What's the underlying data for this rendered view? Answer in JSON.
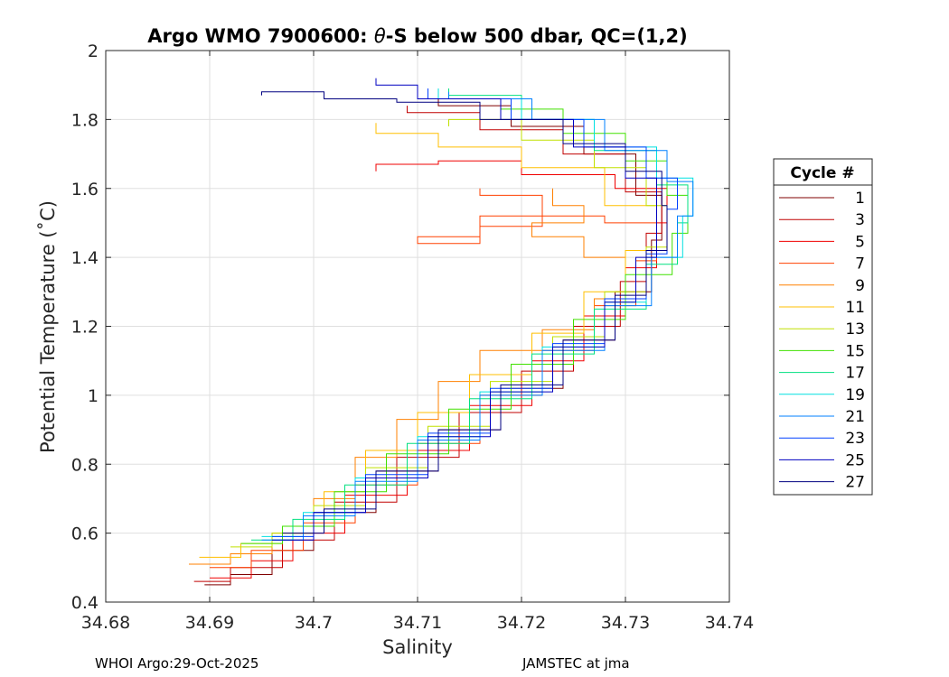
{
  "chart_data": {
    "type": "line",
    "title_prefix": "Argo WMO 7900600: ",
    "title_theta": "θ",
    "title_suffix": "-S below 500 dbar,  QC=(1,2)",
    "xlabel": "Salinity",
    "ylabel": "Potential Temperature (˚C)",
    "xlim": [
      34.68,
      34.74
    ],
    "ylim": [
      0.4,
      2.0
    ],
    "xticks": [
      34.68,
      34.69,
      34.7,
      34.71,
      34.72,
      34.73,
      34.74
    ],
    "xtick_labels": [
      "34.68",
      "34.69",
      "34.7",
      "34.71",
      "34.72",
      "34.73",
      "34.74"
    ],
    "yticks": [
      0.4,
      0.6,
      0.8,
      1.0,
      1.2,
      1.4,
      1.6,
      1.8,
      2.0
    ],
    "ytick_labels": [
      "0.4",
      "0.6",
      "0.8",
      "1",
      "1.2",
      "1.4",
      "1.6",
      "1.8",
      "2"
    ],
    "grid": true,
    "legend": {
      "title": "Cycle #",
      "placement": "right-outside",
      "entries": [
        "1",
        "3",
        "5",
        "7",
        "9",
        "11",
        "13",
        "15",
        "17",
        "19",
        "21",
        "23",
        "25",
        "27"
      ]
    },
    "series": [
      {
        "name": "1",
        "color": "#800000",
        "points": [
          [
            34.6895,
            0.45
          ],
          [
            34.692,
            0.48
          ],
          [
            34.696,
            0.55
          ],
          [
            34.7,
            0.66
          ],
          [
            34.706,
            0.78
          ],
          [
            34.712,
            0.9
          ],
          [
            34.718,
            1.02
          ],
          [
            34.724,
            1.16
          ],
          [
            34.729,
            1.3
          ],
          [
            34.7325,
            1.45
          ],
          [
            34.7335,
            1.58
          ],
          [
            34.731,
            1.7
          ],
          [
            34.726,
            1.78
          ],
          [
            34.719,
            1.84
          ],
          [
            34.712,
            1.87
          ]
        ]
      },
      {
        "name": "3",
        "color": "#c00000",
        "points": [
          [
            34.6885,
            0.46
          ],
          [
            34.692,
            0.5
          ],
          [
            34.697,
            0.58
          ],
          [
            34.702,
            0.69
          ],
          [
            34.708,
            0.82
          ],
          [
            34.714,
            0.95
          ],
          [
            34.72,
            1.07
          ],
          [
            34.725,
            1.2
          ],
          [
            34.7295,
            1.33
          ],
          [
            34.732,
            1.47
          ],
          [
            34.7335,
            1.59
          ],
          [
            34.73,
            1.7
          ],
          [
            34.724,
            1.77
          ],
          [
            34.716,
            1.82
          ],
          [
            34.709,
            1.84
          ]
        ]
      },
      {
        "name": "5",
        "color": "#f00000",
        "points": [
          [
            34.69,
            0.47
          ],
          [
            34.694,
            0.52
          ],
          [
            34.698,
            0.6
          ],
          [
            34.703,
            0.71
          ],
          [
            34.709,
            0.84
          ],
          [
            34.715,
            0.97
          ],
          [
            34.721,
            1.1
          ],
          [
            34.726,
            1.23
          ],
          [
            34.73,
            1.37
          ],
          [
            34.733,
            1.5
          ],
          [
            34.734,
            1.6
          ],
          [
            34.729,
            1.64
          ],
          [
            34.72,
            1.68
          ],
          [
            34.712,
            1.67
          ],
          [
            34.706,
            1.65
          ]
        ]
      },
      {
        "name": "7",
        "color": "#ff4000",
        "points": [
          [
            34.69,
            0.5
          ],
          [
            34.694,
            0.55
          ],
          [
            34.699,
            0.63
          ],
          [
            34.704,
            0.74
          ],
          [
            34.71,
            0.86
          ],
          [
            34.716,
            1.0
          ],
          [
            34.722,
            1.13
          ],
          [
            34.727,
            1.26
          ],
          [
            34.731,
            1.39
          ],
          [
            34.733,
            1.5
          ],
          [
            34.728,
            1.52
          ],
          [
            34.722,
            1.49
          ],
          [
            34.716,
            1.46
          ],
          [
            34.71,
            1.44
          ],
          [
            34.716,
            1.52
          ],
          [
            34.722,
            1.58
          ],
          [
            34.716,
            1.6
          ]
        ]
      },
      {
        "name": "9",
        "color": "#ff8000",
        "points": [
          [
            34.688,
            0.51
          ],
          [
            34.692,
            0.54
          ],
          [
            34.696,
            0.6
          ],
          [
            34.7,
            0.7
          ],
          [
            34.704,
            0.82
          ],
          [
            34.708,
            0.93
          ],
          [
            34.712,
            1.04
          ],
          [
            34.716,
            1.13
          ],
          [
            34.722,
            1.19
          ],
          [
            34.727,
            1.28
          ],
          [
            34.73,
            1.4
          ],
          [
            34.726,
            1.46
          ],
          [
            34.721,
            1.5
          ],
          [
            34.726,
            1.55
          ],
          [
            34.723,
            1.6
          ]
        ]
      },
      {
        "name": "11",
        "color": "#ffbf00",
        "points": [
          [
            34.689,
            0.53
          ],
          [
            34.693,
            0.57
          ],
          [
            34.697,
            0.62
          ],
          [
            34.701,
            0.72
          ],
          [
            34.705,
            0.84
          ],
          [
            34.71,
            0.95
          ],
          [
            34.715,
            1.06
          ],
          [
            34.721,
            1.18
          ],
          [
            34.726,
            1.3
          ],
          [
            34.73,
            1.42
          ],
          [
            34.733,
            1.55
          ],
          [
            34.728,
            1.66
          ],
          [
            34.72,
            1.72
          ],
          [
            34.712,
            1.76
          ],
          [
            34.706,
            1.79
          ]
        ]
      },
      {
        "name": "13",
        "color": "#c0e000",
        "points": [
          [
            34.692,
            0.56
          ],
          [
            34.696,
            0.6
          ],
          [
            34.7,
            0.68
          ],
          [
            34.705,
            0.79
          ],
          [
            34.711,
            0.91
          ],
          [
            34.717,
            1.04
          ],
          [
            34.723,
            1.17
          ],
          [
            34.728,
            1.3
          ],
          [
            34.732,
            1.43
          ],
          [
            34.734,
            1.55
          ],
          [
            34.732,
            1.66
          ],
          [
            34.727,
            1.74
          ],
          [
            34.72,
            1.8
          ],
          [
            34.713,
            1.78
          ]
        ]
      },
      {
        "name": "15",
        "color": "#40e000",
        "points": [
          [
            34.693,
            0.57
          ],
          [
            34.697,
            0.62
          ],
          [
            34.702,
            0.72
          ],
          [
            34.707,
            0.83
          ],
          [
            34.713,
            0.96
          ],
          [
            34.719,
            1.09
          ],
          [
            34.725,
            1.22
          ],
          [
            34.73,
            1.35
          ],
          [
            34.7345,
            1.47
          ],
          [
            34.736,
            1.58
          ],
          [
            34.734,
            1.68
          ],
          [
            34.73,
            1.76
          ],
          [
            34.724,
            1.83
          ],
          [
            34.718,
            1.86
          ]
        ]
      },
      {
        "name": "17",
        "color": "#00e080",
        "points": [
          [
            34.694,
            0.58
          ],
          [
            34.698,
            0.64
          ],
          [
            34.703,
            0.74
          ],
          [
            34.709,
            0.86
          ],
          [
            34.715,
            0.99
          ],
          [
            34.721,
            1.12
          ],
          [
            34.727,
            1.25
          ],
          [
            34.732,
            1.38
          ],
          [
            34.735,
            1.5
          ],
          [
            34.736,
            1.61
          ],
          [
            34.733,
            1.71
          ],
          [
            34.727,
            1.8
          ],
          [
            34.72,
            1.87
          ],
          [
            34.713,
            1.89
          ]
        ]
      },
      {
        "name": "19",
        "color": "#00e0e0",
        "points": [
          [
            34.695,
            0.59
          ],
          [
            34.699,
            0.66
          ],
          [
            34.704,
            0.76
          ],
          [
            34.71,
            0.88
          ],
          [
            34.716,
            1.01
          ],
          [
            34.722,
            1.14
          ],
          [
            34.728,
            1.27
          ],
          [
            34.732,
            1.4
          ],
          [
            34.7355,
            1.52
          ],
          [
            34.7365,
            1.63
          ],
          [
            34.733,
            1.72
          ],
          [
            34.727,
            1.8
          ],
          [
            34.72,
            1.86
          ],
          [
            34.712,
            1.89
          ]
        ]
      },
      {
        "name": "21",
        "color": "#0080ff",
        "points": [
          [
            34.695,
            0.58
          ],
          [
            34.699,
            0.65
          ],
          [
            34.704,
            0.75
          ],
          [
            34.71,
            0.87
          ],
          [
            34.716,
            1.0
          ],
          [
            34.722,
            1.13
          ],
          [
            34.728,
            1.26
          ],
          [
            34.7325,
            1.4
          ],
          [
            34.735,
            1.52
          ],
          [
            34.7365,
            1.62
          ],
          [
            34.734,
            1.71
          ],
          [
            34.728,
            1.8
          ],
          [
            34.721,
            1.86
          ],
          [
            34.713,
            1.88
          ]
        ]
      },
      {
        "name": "23",
        "color": "#0040ff",
        "points": [
          [
            34.696,
            0.59
          ],
          [
            34.7,
            0.66
          ],
          [
            34.705,
            0.77
          ],
          [
            34.711,
            0.89
          ],
          [
            34.717,
            1.02
          ],
          [
            34.723,
            1.15
          ],
          [
            34.728,
            1.28
          ],
          [
            34.732,
            1.41
          ],
          [
            34.734,
            1.54
          ],
          [
            34.735,
            1.63
          ],
          [
            34.732,
            1.72
          ],
          [
            34.726,
            1.8
          ],
          [
            34.719,
            1.86
          ],
          [
            34.711,
            1.89
          ]
        ]
      },
      {
        "name": "25",
        "color": "#0000c0",
        "points": [
          [
            34.696,
            0.58
          ],
          [
            34.7,
            0.66
          ],
          [
            34.705,
            0.76
          ],
          [
            34.711,
            0.88
          ],
          [
            34.717,
            1.01
          ],
          [
            34.723,
            1.14
          ],
          [
            34.728,
            1.27
          ],
          [
            34.731,
            1.4
          ],
          [
            34.733,
            1.53
          ],
          [
            34.733,
            1.63
          ],
          [
            34.73,
            1.72
          ],
          [
            34.725,
            1.8
          ],
          [
            34.718,
            1.86
          ],
          [
            34.71,
            1.9
          ],
          [
            34.706,
            1.92
          ]
        ]
      },
      {
        "name": "27",
        "color": "#000080",
        "points": [
          [
            34.697,
            0.6
          ],
          [
            34.701,
            0.67
          ],
          [
            34.706,
            0.78
          ],
          [
            34.712,
            0.9
          ],
          [
            34.718,
            1.03
          ],
          [
            34.724,
            1.16
          ],
          [
            34.729,
            1.29
          ],
          [
            34.732,
            1.42
          ],
          [
            34.734,
            1.55
          ],
          [
            34.7335,
            1.65
          ],
          [
            34.73,
            1.73
          ],
          [
            34.724,
            1.8
          ],
          [
            34.716,
            1.85
          ],
          [
            34.708,
            1.86
          ],
          [
            34.701,
            1.88
          ],
          [
            34.695,
            1.87
          ]
        ]
      }
    ]
  },
  "footer": {
    "left": "WHOI Argo:29-Oct-2025",
    "right": "JAMSTEC at jma"
  }
}
